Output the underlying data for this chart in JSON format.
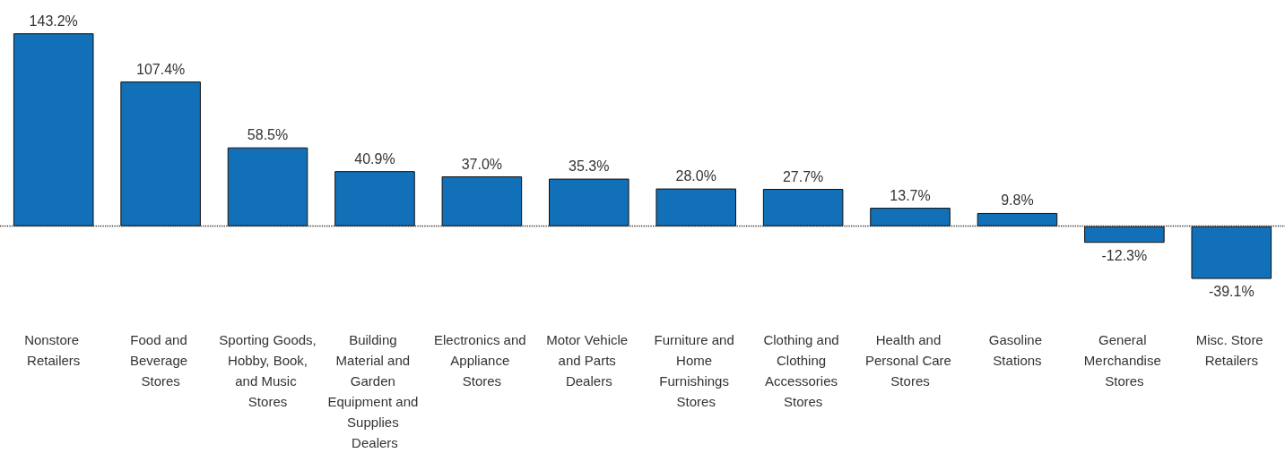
{
  "chart_data": {
    "type": "bar",
    "categories": [
      "Nonstore Retailers",
      "Food and Beverage Stores",
      "Sporting Goods, Hobby, Book, and Music Stores",
      "Building Material and Garden Equipment and Supplies Dealers",
      "Electronics and Appliance Stores",
      "Motor Vehicle and Parts Dealers",
      "Furniture and Home Furnishings Stores",
      "Clothing and Clothing Accessories Stores",
      "Health and Personal Care Stores",
      "Gasoline Stations",
      "General Merchandise Stores",
      "Misc. Store Retailers"
    ],
    "values": [
      143.2,
      107.4,
      58.5,
      40.9,
      37.0,
      35.3,
      28.0,
      27.7,
      13.7,
      9.8,
      -12.3,
      -39.1
    ],
    "value_labels": [
      "143.2%",
      "107.4%",
      "58.5%",
      "40.9%",
      "37.0%",
      "35.3%",
      "28.0%",
      "27.7%",
      "13.7%",
      "9.8%",
      "-12.3%",
      "-39.1%"
    ],
    "color": "#1170b8",
    "ref_lines": [
      {
        "axis": "y",
        "value": 0,
        "line_style": "dotted",
        "color": "#333333"
      }
    ]
  }
}
